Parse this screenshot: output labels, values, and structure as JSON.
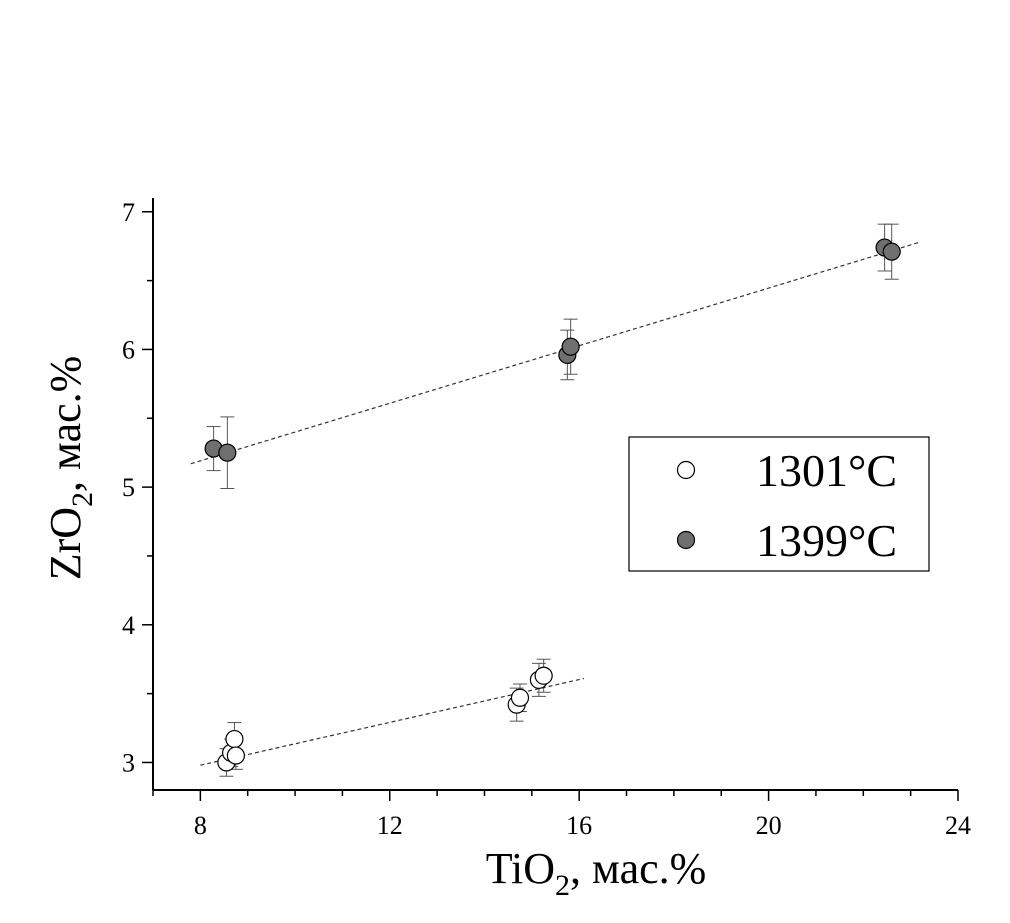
{
  "chart_data": {
    "type": "scatter",
    "title": "",
    "xlabel": {
      "main": "TiO",
      "sub": "2",
      "rest": ", мас.%"
    },
    "ylabel": {
      "main": "ZrO",
      "sub": "2",
      "rest": ", мас.%"
    },
    "xlim": [
      7,
      24
    ],
    "ylim": [
      2.8,
      7.1
    ],
    "xticks": [
      8,
      12,
      16,
      20,
      24
    ],
    "yticks": [
      3,
      4,
      5,
      6,
      7
    ],
    "xtick_labels": [
      "8",
      "12",
      "16",
      "20",
      "24"
    ],
    "ytick_labels": [
      "3",
      "4",
      "5",
      "6",
      "7"
    ],
    "legend_position": "right-middle",
    "series": [
      {
        "name": "1301°C",
        "color": "#ffffff",
        "stroke": "#000000",
        "points": [
          {
            "x": 8.55,
            "y": 3.0,
            "err": 0.1
          },
          {
            "x": 8.65,
            "y": 3.07,
            "err": 0.1
          },
          {
            "x": 8.72,
            "y": 3.17,
            "err": 0.12
          },
          {
            "x": 8.75,
            "y": 3.05,
            "err": 0.1
          },
          {
            "x": 14.68,
            "y": 3.42,
            "err": 0.12
          },
          {
            "x": 14.75,
            "y": 3.47,
            "err": 0.1
          },
          {
            "x": 15.15,
            "y": 3.6,
            "err": 0.12
          },
          {
            "x": 15.25,
            "y": 3.63,
            "err": 0.12
          }
        ],
        "fit": {
          "x": [
            8.0,
            16.1
          ],
          "y": [
            2.98,
            3.61
          ]
        }
      },
      {
        "name": "1399°C",
        "color": "#6f6f6f",
        "stroke": "#000000",
        "points": [
          {
            "x": 8.28,
            "y": 5.28,
            "err": 0.16
          },
          {
            "x": 8.57,
            "y": 5.25,
            "err": 0.26
          },
          {
            "x": 15.75,
            "y": 5.96,
            "err": 0.18
          },
          {
            "x": 15.82,
            "y": 6.02,
            "err": 0.2
          },
          {
            "x": 22.45,
            "y": 6.74,
            "err": 0.17
          },
          {
            "x": 22.6,
            "y": 6.71,
            "err": 0.2
          }
        ],
        "fit": {
          "x": [
            7.8,
            23.2
          ],
          "y": [
            5.17,
            6.78
          ]
        }
      }
    ]
  }
}
